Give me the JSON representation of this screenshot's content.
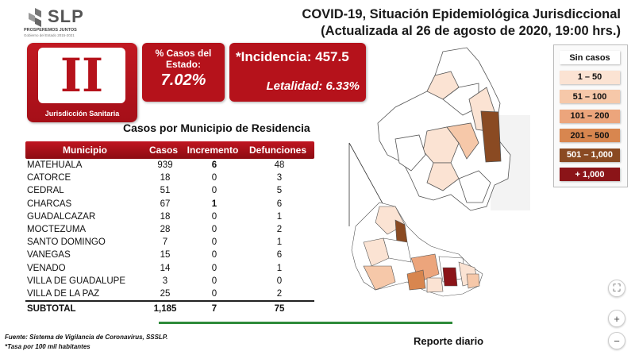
{
  "logo": {
    "text": "SLP",
    "sub1": "PROSPEREMOS JUNTOS",
    "sub2": "Gobierno del Estado 2015-2021"
  },
  "header": {
    "title": "COVID-19, Situación Epidemiológica Jurisdiccional",
    "subtitle": "(Actualizada al 26 de agosto de 2020, 19:00 hrs.)"
  },
  "jurisdiction": {
    "numeral": "II",
    "label": "Jurisdicción Sanitaria"
  },
  "pct_state": {
    "label": "% Casos del Estado:",
    "value": "7.02%"
  },
  "incidence": {
    "incidencia": "*Incidencia: 457.5",
    "letalidad": "Letalidad: 6.33%"
  },
  "table": {
    "title": "Casos por Municipio  de Residencia",
    "headers": [
      "Municipio",
      "Casos",
      "Incremento",
      "Defunciones"
    ],
    "rows": [
      [
        "MATEHUALA",
        "939",
        "6",
        "48"
      ],
      [
        "CATORCE",
        "18",
        "0",
        "3"
      ],
      [
        "CEDRAL",
        "51",
        "0",
        "5"
      ],
      [
        "CHARCAS",
        "67",
        "1",
        "6"
      ],
      [
        "GUADALCAZAR",
        "18",
        "0",
        "1"
      ],
      [
        "MOCTEZUMA",
        "28",
        "0",
        "2"
      ],
      [
        "SANTO DOMINGO",
        "7",
        "0",
        "1"
      ],
      [
        "VANEGAS",
        "15",
        "0",
        "6"
      ],
      [
        "VENADO",
        "14",
        "0",
        "1"
      ],
      [
        "VILLA DE GUADALUPE",
        "3",
        "0",
        "0"
      ],
      [
        "VILLA DE LA PAZ",
        "25",
        "0",
        "2"
      ]
    ],
    "subtotal": [
      "SUBTOTAL",
      "1,185",
      "7",
      "75"
    ]
  },
  "legend": [
    {
      "label": "Sin casos",
      "color": "#ffffff",
      "text": "#111111"
    },
    {
      "label": "1 – 50",
      "color": "#fbe3d3",
      "text": "#111111"
    },
    {
      "label": "51 – 100",
      "color": "#f6c8a9",
      "text": "#111111"
    },
    {
      "label": "101 – 200",
      "color": "#eca57c",
      "text": "#111111"
    },
    {
      "label": "201 – 500",
      "color": "#d8864f",
      "text": "#111111"
    },
    {
      "label": "501 – 1,000",
      "color": "#8a4a22",
      "text": "#ffffff"
    },
    {
      "label": "+ 1,000",
      "color": "#8b1418",
      "text": "#ffffff"
    }
  ],
  "footnotes": {
    "source": "Fuente: Sistema de Vigilancia de Coronavirus, SSSLP.",
    "rate": "*Tasa por 100 mil habitantes"
  },
  "bottom": {
    "label": "Reporte diario"
  },
  "controls": {
    "fit": "⛶",
    "zoom_in": "+",
    "zoom_out": "−"
  },
  "colors": {
    "brand_red": "#b5121b",
    "accent_green": "#2e8b3a"
  }
}
